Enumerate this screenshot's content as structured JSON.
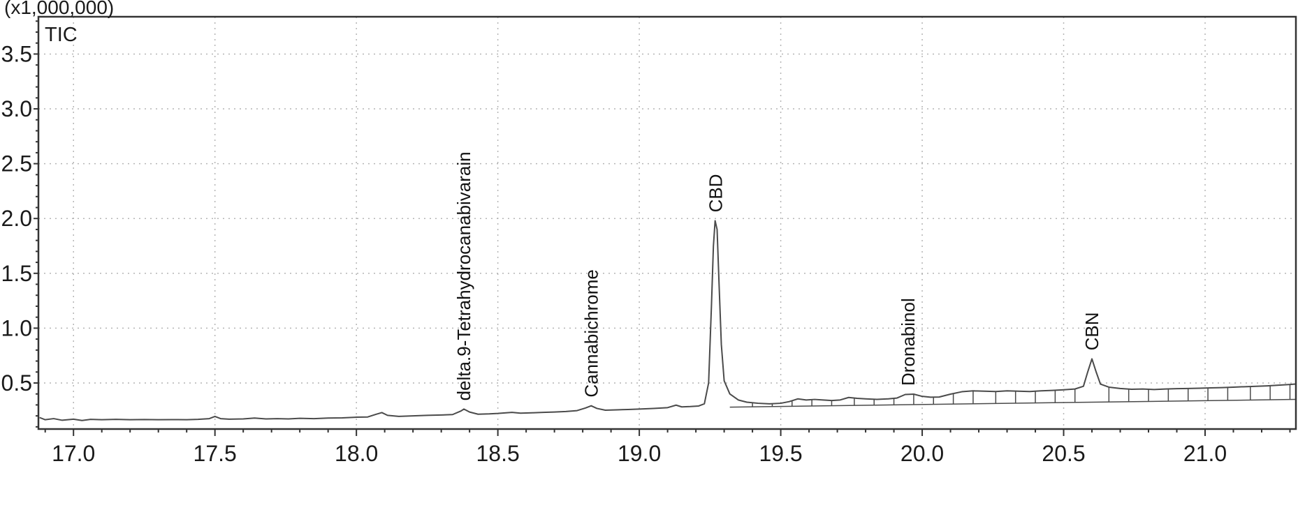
{
  "chart_data": {
    "type": "line",
    "y_axis_multiplier": "(x1,000,000)",
    "trace_label": "TIC",
    "xlim": [
      16.876,
      21.321
    ],
    "ylim": [
      0.08,
      3.84
    ],
    "x_ticks": [
      17.0,
      17.5,
      18.0,
      18.5,
      19.0,
      19.5,
      20.0,
      20.5,
      21.0
    ],
    "x_tick_labels": [
      "17.0",
      "17.5",
      "18.0",
      "18.5",
      "19.0",
      "19.5",
      "20.0",
      "20.5",
      "21.0"
    ],
    "y_ticks": [
      0.5,
      1.0,
      1.5,
      2.0,
      2.5,
      3.0,
      3.5
    ],
    "y_tick_labels": [
      "0.5",
      "1.0",
      "1.5",
      "2.0",
      "2.5",
      "3.0",
      "3.5"
    ],
    "x_minor_step": 0.1,
    "y_minor_step": 0.1,
    "grid": true,
    "colors": {
      "trace": "#4a4a4a",
      "grid": "#b4b4b4",
      "frame": "#333333",
      "text": "#1a1a1a",
      "background": "#ffffff"
    },
    "peaks": [
      {
        "label": "delta.9-Tetrahydrocanabivarain",
        "rt": 18.38,
        "height": 0.262
      },
      {
        "label": "Cannabichrome",
        "rt": 18.83,
        "height": 0.292
      },
      {
        "label": "CBD",
        "rt": 19.27,
        "height": 1.98
      },
      {
        "label": "Dronabinol",
        "rt": 19.95,
        "height": 0.398
      },
      {
        "label": "CBN",
        "rt": 20.6,
        "height": 0.72
      }
    ],
    "series": [
      {
        "name": "TIC",
        "points": [
          [
            16.88,
            0.185
          ],
          [
            16.9,
            0.165
          ],
          [
            16.93,
            0.175
          ],
          [
            16.96,
            0.16
          ],
          [
            17.0,
            0.17
          ],
          [
            17.03,
            0.158
          ],
          [
            17.06,
            0.168
          ],
          [
            17.1,
            0.165
          ],
          [
            17.15,
            0.168
          ],
          [
            17.2,
            0.165
          ],
          [
            17.25,
            0.167
          ],
          [
            17.3,
            0.165
          ],
          [
            17.35,
            0.166
          ],
          [
            17.4,
            0.165
          ],
          [
            17.44,
            0.168
          ],
          [
            17.48,
            0.175
          ],
          [
            17.5,
            0.195
          ],
          [
            17.52,
            0.175
          ],
          [
            17.55,
            0.17
          ],
          [
            17.6,
            0.172
          ],
          [
            17.64,
            0.18
          ],
          [
            17.68,
            0.172
          ],
          [
            17.72,
            0.175
          ],
          [
            17.76,
            0.172
          ],
          [
            17.8,
            0.178
          ],
          [
            17.85,
            0.175
          ],
          [
            17.9,
            0.18
          ],
          [
            17.95,
            0.182
          ],
          [
            18.0,
            0.188
          ],
          [
            18.04,
            0.19
          ],
          [
            18.07,
            0.215
          ],
          [
            18.09,
            0.23
          ],
          [
            18.11,
            0.205
          ],
          [
            18.15,
            0.195
          ],
          [
            18.2,
            0.2
          ],
          [
            18.25,
            0.205
          ],
          [
            18.3,
            0.208
          ],
          [
            18.34,
            0.212
          ],
          [
            18.37,
            0.245
          ],
          [
            18.38,
            0.262
          ],
          [
            18.4,
            0.235
          ],
          [
            18.43,
            0.215
          ],
          [
            18.47,
            0.218
          ],
          [
            18.5,
            0.222
          ],
          [
            18.55,
            0.232
          ],
          [
            18.58,
            0.225
          ],
          [
            18.62,
            0.228
          ],
          [
            18.66,
            0.232
          ],
          [
            18.7,
            0.235
          ],
          [
            18.74,
            0.24
          ],
          [
            18.78,
            0.248
          ],
          [
            18.81,
            0.272
          ],
          [
            18.83,
            0.292
          ],
          [
            18.85,
            0.268
          ],
          [
            18.88,
            0.252
          ],
          [
            18.92,
            0.255
          ],
          [
            18.96,
            0.258
          ],
          [
            19.0,
            0.262
          ],
          [
            19.05,
            0.268
          ],
          [
            19.1,
            0.275
          ],
          [
            19.13,
            0.298
          ],
          [
            19.15,
            0.282
          ],
          [
            19.18,
            0.285
          ],
          [
            19.21,
            0.29
          ],
          [
            19.23,
            0.31
          ],
          [
            19.245,
            0.5
          ],
          [
            19.255,
            1.2
          ],
          [
            19.262,
            1.75
          ],
          [
            19.268,
            1.98
          ],
          [
            19.275,
            1.9
          ],
          [
            19.282,
            1.4
          ],
          [
            19.29,
            0.85
          ],
          [
            19.3,
            0.52
          ],
          [
            19.32,
            0.4
          ],
          [
            19.35,
            0.345
          ],
          [
            19.38,
            0.325
          ],
          [
            19.42,
            0.315
          ],
          [
            19.46,
            0.31
          ],
          [
            19.5,
            0.315
          ],
          [
            19.53,
            0.33
          ],
          [
            19.56,
            0.355
          ],
          [
            19.59,
            0.345
          ],
          [
            19.62,
            0.35
          ],
          [
            19.65,
            0.345
          ],
          [
            19.68,
            0.34
          ],
          [
            19.71,
            0.345
          ],
          [
            19.74,
            0.368
          ],
          [
            19.77,
            0.36
          ],
          [
            19.8,
            0.355
          ],
          [
            19.84,
            0.35
          ],
          [
            19.88,
            0.355
          ],
          [
            19.91,
            0.362
          ],
          [
            19.94,
            0.395
          ],
          [
            19.97,
            0.398
          ],
          [
            20.0,
            0.378
          ],
          [
            20.03,
            0.37
          ],
          [
            20.06,
            0.372
          ],
          [
            20.1,
            0.398
          ],
          [
            20.14,
            0.42
          ],
          [
            20.18,
            0.428
          ],
          [
            20.22,
            0.425
          ],
          [
            20.26,
            0.422
          ],
          [
            20.3,
            0.428
          ],
          [
            20.34,
            0.425
          ],
          [
            20.38,
            0.422
          ],
          [
            20.42,
            0.428
          ],
          [
            20.46,
            0.432
          ],
          [
            20.5,
            0.438
          ],
          [
            20.54,
            0.445
          ],
          [
            20.57,
            0.47
          ],
          [
            20.585,
            0.6
          ],
          [
            20.6,
            0.72
          ],
          [
            20.615,
            0.6
          ],
          [
            20.63,
            0.49
          ],
          [
            20.66,
            0.462
          ],
          [
            20.7,
            0.45
          ],
          [
            20.74,
            0.443
          ],
          [
            20.78,
            0.445
          ],
          [
            20.82,
            0.44
          ],
          [
            20.86,
            0.445
          ],
          [
            20.9,
            0.448
          ],
          [
            20.94,
            0.45
          ],
          [
            20.98,
            0.452
          ],
          [
            21.02,
            0.455
          ],
          [
            21.06,
            0.458
          ],
          [
            21.1,
            0.462
          ],
          [
            21.14,
            0.466
          ],
          [
            21.18,
            0.47
          ],
          [
            21.22,
            0.474
          ],
          [
            21.26,
            0.48
          ],
          [
            21.3,
            0.486
          ],
          [
            21.32,
            0.49
          ]
        ]
      }
    ],
    "baseline": {
      "points": [
        [
          19.32,
          0.28
        ],
        [
          21.32,
          0.35
        ]
      ]
    },
    "integration_dividers": [
      19.4,
      19.47,
      19.54,
      19.61,
      19.68,
      19.76,
      19.83,
      19.9,
      19.97,
      20.04,
      20.11,
      20.18,
      20.26,
      20.33,
      20.4,
      20.47,
      20.54,
      20.66,
      20.73,
      20.8,
      20.87,
      20.94,
      21.01,
      21.08,
      21.16,
      21.23,
      21.3
    ]
  }
}
